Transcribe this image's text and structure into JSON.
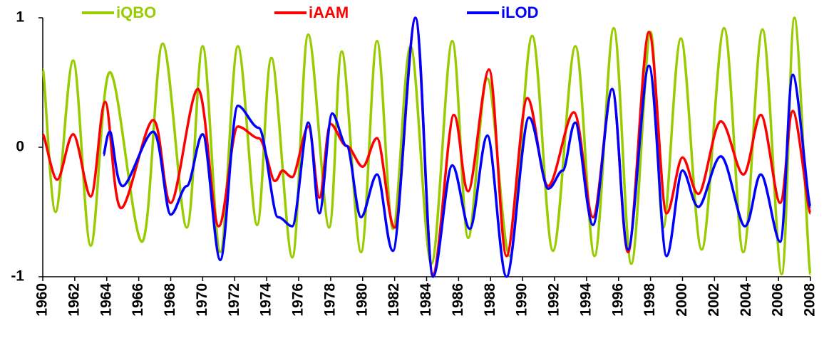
{
  "chart_data": {
    "type": "line",
    "xlim": [
      1960,
      2008
    ],
    "xticks": [
      1960,
      1962,
      1964,
      1966,
      1968,
      1970,
      1972,
      1974,
      1976,
      1978,
      1980,
      1982,
      1984,
      1986,
      1988,
      1990,
      1992,
      1994,
      1996,
      1998,
      2000,
      2002,
      2004,
      2006,
      2008
    ],
    "ylim": [
      -1,
      1
    ],
    "yticks": [
      -1,
      0,
      1
    ],
    "series": [
      {
        "name": "iQBO",
        "color": "#99cc00",
        "x": [
          1960,
          1960.8,
          1961.9,
          1963,
          1964.2,
          1966.2,
          1967.5,
          1969,
          1970,
          1971.1,
          1972.2,
          1973.4,
          1974.3,
          1975.6,
          1976.6,
          1977.9,
          1978.7,
          1979.9,
          1980.9,
          1981.9,
          1983,
          1984.3,
          1985.6,
          1986.6,
          1987.8,
          1989.2,
          1990.6,
          1991.9,
          1993.3,
          1994.5,
          1995.7,
          1996.8,
          1998,
          1998.8,
          1999.9,
          2001.2,
          2002.6,
          2003.8,
          2005,
          2006.2,
          2007,
          2008
        ],
        "values": [
          0.6,
          -0.5,
          0.67,
          -0.76,
          0.58,
          -0.73,
          0.8,
          -0.62,
          0.78,
          -0.81,
          0.78,
          -0.6,
          0.69,
          -0.85,
          0.87,
          -0.62,
          0.74,
          -0.81,
          0.82,
          -0.63,
          0.78,
          -0.9,
          0.82,
          -0.7,
          0.53,
          -0.84,
          0.86,
          -0.8,
          0.78,
          -0.84,
          0.92,
          -0.9,
          0.89,
          -0.62,
          0.84,
          -0.79,
          0.92,
          -0.81,
          0.91,
          -0.98,
          1.0,
          -0.98
        ]
      },
      {
        "name": "iAAM",
        "color": "#ff0000",
        "x": [
          1960,
          1960.9,
          1961.9,
          1963,
          1963.9,
          1964.9,
          1966.9,
          1968,
          1969.7,
          1971,
          1972.2,
          1973.5,
          1974.5,
          1975,
          1975.6,
          1976.6,
          1977.3,
          1978,
          1979,
          1980,
          1980.9,
          1982,
          1983.3,
          1984.4,
          1985.7,
          1986.6,
          1987.9,
          1989,
          1990.3,
          1991.6,
          1993.2,
          1994.4,
          1995.6,
          1996.6,
          1997.9,
          1999,
          2000,
          2001,
          2002.4,
          2003.8,
          2004.9,
          2006.1,
          2006.9,
          2008
        ],
        "values": [
          0.1,
          -0.25,
          0.1,
          -0.38,
          0.35,
          -0.47,
          0.21,
          -0.43,
          0.45,
          -0.61,
          0.16,
          0.07,
          -0.26,
          -0.18,
          -0.23,
          0.16,
          -0.39,
          0.18,
          0.01,
          -0.15,
          0.07,
          -0.62,
          1.0,
          -0.98,
          0.25,
          -0.34,
          0.6,
          -0.84,
          0.38,
          -0.3,
          0.27,
          -0.54,
          0.45,
          -0.81,
          0.89,
          -0.51,
          -0.08,
          -0.36,
          0.2,
          -0.21,
          0.25,
          -0.43,
          0.28,
          -0.51
        ]
      },
      {
        "name": "iLOD",
        "color": "#0000ff",
        "x": [
          1963.8,
          1964.2,
          1965,
          1966.9,
          1968,
          1969,
          1970,
          1971.1,
          1972.2,
          1973.5,
          1974.7,
          1975.6,
          1976.6,
          1977.3,
          1978.1,
          1979,
          1979.9,
          1980.9,
          1981.9,
          1983.3,
          1984.4,
          1985.6,
          1986.7,
          1987.8,
          1989,
          1990.4,
          1991.6,
          1992.5,
          1993.3,
          1994.4,
          1995.6,
          1996.6,
          1997.9,
          1999,
          2000,
          2001,
          2002.4,
          2003.9,
          2004.9,
          2006.1,
          2006.9,
          2008
        ],
        "values": [
          -0.06,
          0.12,
          -0.3,
          0.12,
          -0.52,
          -0.3,
          0.1,
          -0.87,
          0.32,
          0.15,
          -0.54,
          -0.61,
          0.19,
          -0.51,
          0.26,
          0.01,
          -0.54,
          -0.21,
          -0.8,
          1.0,
          -1.0,
          -0.14,
          -0.63,
          0.09,
          -1.0,
          0.23,
          -0.32,
          -0.18,
          0.19,
          -0.6,
          0.45,
          -0.79,
          0.63,
          -0.84,
          -0.18,
          -0.46,
          -0.07,
          -0.61,
          -0.21,
          -0.73,
          0.56,
          -0.46
        ]
      }
    ]
  }
}
